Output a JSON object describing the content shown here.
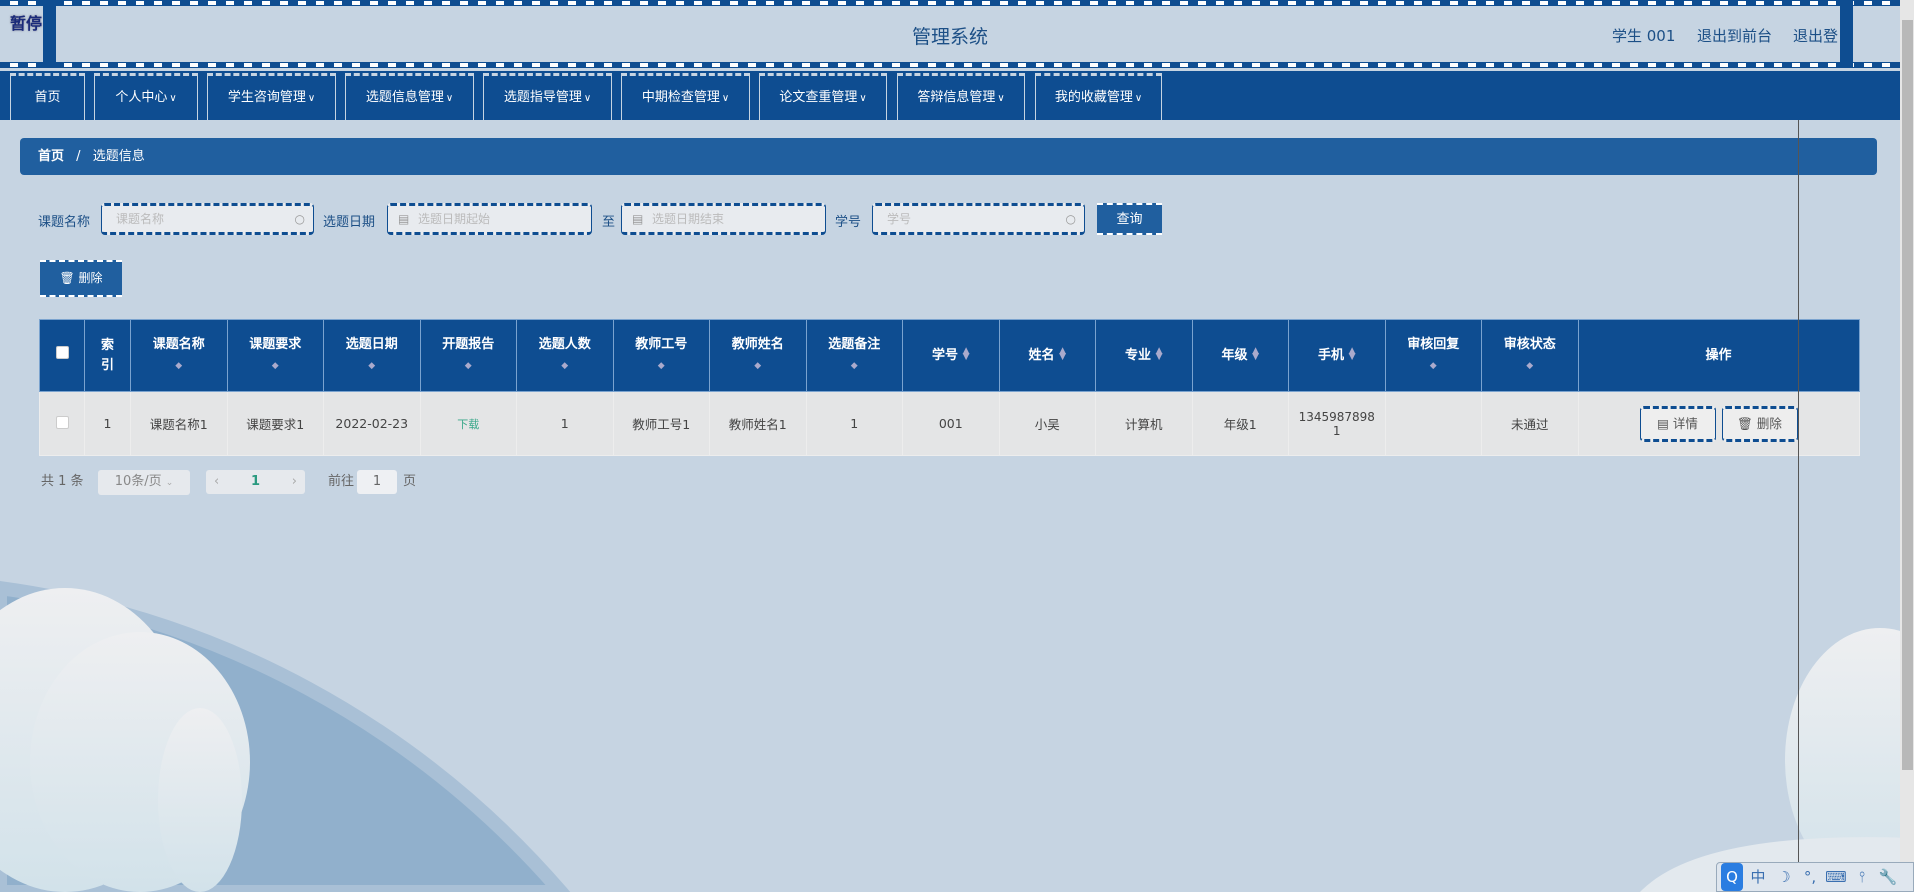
{
  "header": {
    "pause_label": "暂停",
    "title": "管理系统",
    "user": "学生 001",
    "to_front": "退出到前台",
    "logout": "退出登"
  },
  "nav": {
    "items": [
      {
        "label": "首页",
        "dropdown": false
      },
      {
        "label": "个人中心",
        "dropdown": true
      },
      {
        "label": "学生咨询管理",
        "dropdown": true
      },
      {
        "label": "选题信息管理",
        "dropdown": true
      },
      {
        "label": "选题指导管理",
        "dropdown": true
      },
      {
        "label": "中期检查管理",
        "dropdown": true
      },
      {
        "label": "论文查重管理",
        "dropdown": true
      },
      {
        "label": "答辩信息管理",
        "dropdown": true
      },
      {
        "label": "我的收藏管理",
        "dropdown": true
      }
    ]
  },
  "breadcrumb": {
    "home": "首页",
    "sep": "/",
    "current": "选题信息"
  },
  "search": {
    "name_label": "课题名称",
    "name_placeholder": "课题名称",
    "date_label": "选题日期",
    "date_start_placeholder": "选题日期起始",
    "to": "至",
    "date_end_placeholder": "选题日期结束",
    "sno_label": "学号",
    "sno_placeholder": "学号",
    "query": "查询"
  },
  "toolbar": {
    "delete": "删除"
  },
  "table": {
    "columns": [
      {
        "label": "索\n引",
        "sortable": false
      },
      {
        "label": "课题名称",
        "sortable": true
      },
      {
        "label": "课题要求",
        "sortable": true
      },
      {
        "label": "选题日期",
        "sortable": true
      },
      {
        "label": "开题报告",
        "sortable": true
      },
      {
        "label": "选题人数",
        "sortable": true
      },
      {
        "label": "教师工号",
        "sortable": true
      },
      {
        "label": "教师姓名",
        "sortable": true
      },
      {
        "label": "选题备注",
        "sortable": true
      },
      {
        "label": "学号",
        "sortable": true,
        "inline": true
      },
      {
        "label": "姓名",
        "sortable": true,
        "inline": true
      },
      {
        "label": "专业",
        "sortable": true,
        "inline": true
      },
      {
        "label": "年级",
        "sortable": true,
        "inline": true
      },
      {
        "label": "手机",
        "sortable": true,
        "inline": true
      },
      {
        "label": "审核回复",
        "sortable": true
      },
      {
        "label": "审核状态",
        "sortable": true
      },
      {
        "label": "操作",
        "sortable": false
      }
    ],
    "rows": [
      [
        "1",
        "课题名称1",
        "课题要求1",
        "2022-02-23",
        "下载",
        "1",
        "教师工号1",
        "教师姓名1",
        "1",
        "001",
        "小吴",
        "计算机",
        "年级1",
        "13459878981",
        "",
        "未通过"
      ]
    ],
    "actions": {
      "detail": "详情",
      "delete": "删除"
    },
    "link_color": "#3aa88a"
  },
  "pagination": {
    "total": "共 1 条",
    "page_size": "10条/页",
    "current_page": "1",
    "goto_label": "前往",
    "goto_value": "1",
    "page_unit": "页"
  },
  "ime": {
    "items": [
      "Q",
      "中",
      "☽",
      "°,",
      "⌨",
      "⫯",
      "🔧"
    ]
  },
  "colors": {
    "primary": "#0e4d91",
    "accent": "#205f9f",
    "background": "#c6d4e2"
  }
}
